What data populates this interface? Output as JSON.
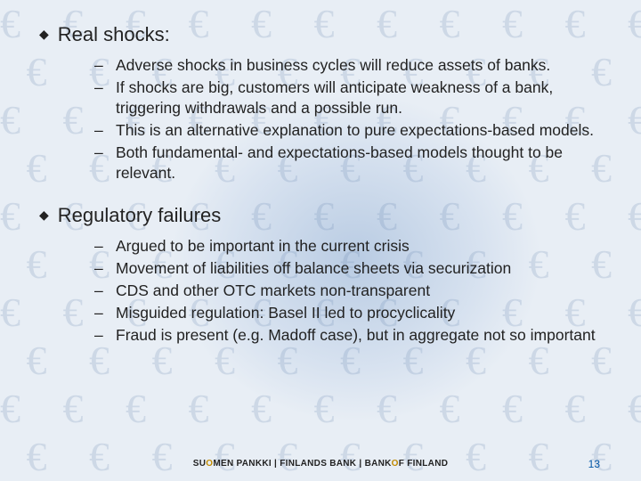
{
  "bullet_marker": "◆",
  "dash_marker": "–",
  "sections": [
    {
      "title": "Real shocks:",
      "items": [
        "Adverse shocks in business cycles will reduce assets of banks.",
        "If shocks are big, customers will anticipate weakness of a bank, triggering withdrawals and a possible run.",
        "This is an alternative explanation to pure expectations-based models.",
        "Both fundamental- and expectations-based models thought to be relevant."
      ]
    },
    {
      "title": "Regulatory failures",
      "items": [
        "Argued to be important in the current crisis",
        "Movement of liabilities off balance sheets via securization",
        "CDS and other OTC markets non-transparent",
        "Misguided regulation: Basel II led to procyclicality",
        "Fraud is present (e.g. Madoff case), but in aggregate not so important"
      ]
    }
  ],
  "footer": {
    "pre": "SU",
    "accent": "O",
    "post1": "MEN PANKKI | FINLANDS BANK | BANK ",
    "accent2": "O",
    "post2": "F FINLAND"
  },
  "page_number": "13",
  "colors": {
    "background": "#e8eef5",
    "text": "#222222",
    "accent_o": "#c08a00",
    "pagenum": "#0256a6",
    "euro_pattern": "#5a7ba8"
  }
}
